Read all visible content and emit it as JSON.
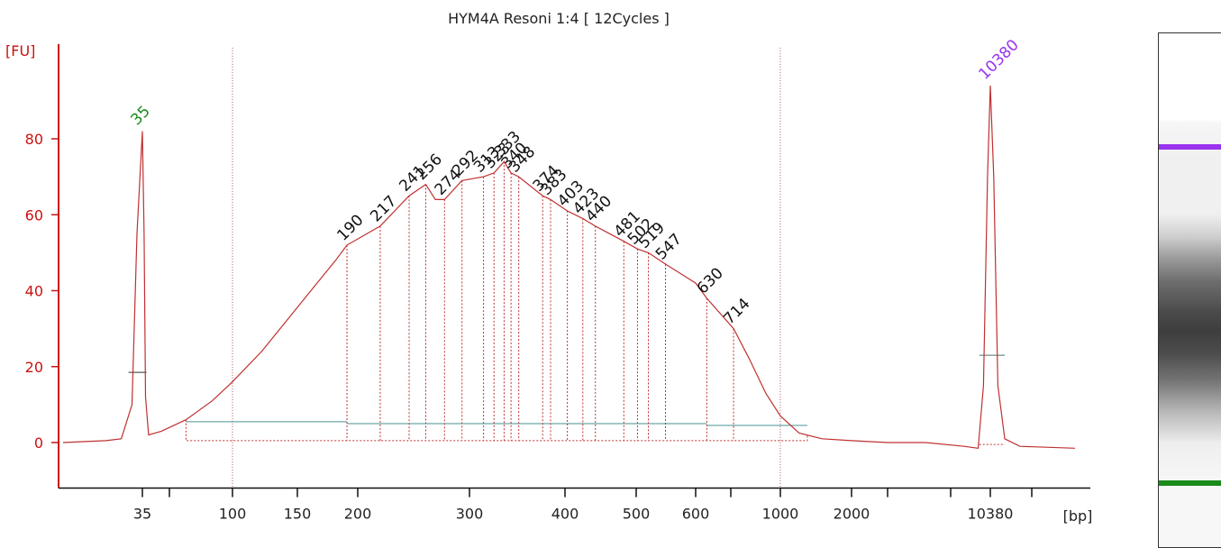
{
  "chart_data": {
    "type": "line",
    "title": "HYM4A Resoni 1:4  [ 12Cycles ]",
    "ylabel": "[FU]",
    "xlabel": "[bp]",
    "ylim": [
      -12,
      104
    ],
    "y_ticks": [
      0,
      20,
      40,
      60,
      80
    ],
    "x_ticks": [
      35,
      100,
      150,
      200,
      300,
      400,
      500,
      600,
      1000,
      2000,
      10380
    ],
    "x_ticks_unlabeled": [
      50,
      700,
      3000,
      7000,
      15000
    ],
    "grid": false,
    "markers": [
      {
        "label": "35",
        "bp": 35,
        "fu": 82,
        "color": "#1a8a1a"
      },
      {
        "label": "10380",
        "bp": 10380,
        "fu": 94,
        "color": "#9933ee"
      }
    ],
    "peaks": [
      {
        "label": "190",
        "bp": 190,
        "fu": 52
      },
      {
        "label": "217",
        "bp": 217,
        "fu": 57
      },
      {
        "label": "241",
        "bp": 241,
        "fu": 65
      },
      {
        "label": "256",
        "bp": 256,
        "fu": 68
      },
      {
        "label": "274",
        "bp": 274,
        "fu": 64
      },
      {
        "label": "292",
        "bp": 292,
        "fu": 69
      },
      {
        "label": "313",
        "bp": 313,
        "fu": 70
      },
      {
        "label": "323",
        "bp": 323,
        "fu": 71
      },
      {
        "label": "333",
        "bp": 333,
        "fu": 74
      },
      {
        "label": "340",
        "bp": 340,
        "fu": 71
      },
      {
        "label": "348",
        "bp": 348,
        "fu": 70
      },
      {
        "label": "374",
        "bp": 374,
        "fu": 65
      },
      {
        "label": "383",
        "bp": 383,
        "fu": 64
      },
      {
        "label": "403",
        "bp": 403,
        "fu": 61
      },
      {
        "label": "423",
        "bp": 423,
        "fu": 59
      },
      {
        "label": "440",
        "bp": 440,
        "fu": 57
      },
      {
        "label": "481",
        "bp": 481,
        "fu": 53
      },
      {
        "label": "502",
        "bp": 502,
        "fu": 51
      },
      {
        "label": "519",
        "bp": 519,
        "fu": 50
      },
      {
        "label": "547",
        "bp": 547,
        "fu": 47
      },
      {
        "label": "630",
        "bp": 630,
        "fu": 38
      },
      {
        "label": "714",
        "bp": 714,
        "fu": 30
      }
    ],
    "series": [
      {
        "color": "#c03030",
        "points": [
          [
            25,
            0
          ],
          [
            30,
            0.5
          ],
          [
            32,
            1
          ],
          [
            33.5,
            10
          ],
          [
            34.2,
            55
          ],
          [
            35,
            82
          ],
          [
            35.8,
            55
          ],
          [
            36.5,
            12
          ],
          [
            38,
            2
          ],
          [
            45,
            3
          ],
          [
            60,
            6
          ],
          [
            80,
            11
          ],
          [
            100,
            16
          ],
          [
            120,
            24
          ],
          [
            140,
            32
          ],
          [
            160,
            40
          ],
          [
            180,
            48
          ],
          [
            190,
            52
          ],
          [
            217,
            57
          ],
          [
            241,
            65
          ],
          [
            256,
            68
          ],
          [
            265,
            64
          ],
          [
            274,
            64
          ],
          [
            292,
            69
          ],
          [
            313,
            70
          ],
          [
            323,
            71
          ],
          [
            333,
            74
          ],
          [
            340,
            71
          ],
          [
            348,
            70
          ],
          [
            374,
            65
          ],
          [
            383,
            64
          ],
          [
            403,
            61
          ],
          [
            423,
            59
          ],
          [
            440,
            57
          ],
          [
            481,
            53
          ],
          [
            502,
            51
          ],
          [
            519,
            50
          ],
          [
            547,
            47
          ],
          [
            600,
            42
          ],
          [
            630,
            38
          ],
          [
            714,
            30
          ],
          [
            800,
            22
          ],
          [
            900,
            13
          ],
          [
            1000,
            7
          ],
          [
            1200,
            2.5
          ],
          [
            1500,
            1
          ],
          [
            2000,
            0.5
          ],
          [
            3000,
            0
          ],
          [
            5000,
            0
          ],
          [
            8000,
            -1
          ],
          [
            9200,
            -1.5
          ],
          [
            9700,
            15
          ],
          [
            10100,
            70
          ],
          [
            10380,
            94
          ],
          [
            10700,
            70
          ],
          [
            11100,
            15
          ],
          [
            11800,
            1
          ],
          [
            13500,
            -1
          ],
          [
            17000,
            -1.5
          ]
        ]
      }
    ]
  },
  "gel": {
    "upper_marker_color": "#9933ee",
    "lower_marker_color": "#1a8a1a"
  }
}
